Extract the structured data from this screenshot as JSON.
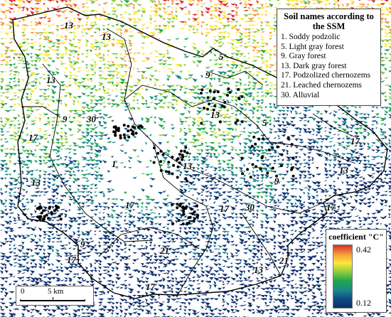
{
  "legend": {
    "title": "Soil names according to the SSM",
    "items": [
      "1. Soddy podzolic",
      "5. Light gray forest",
      "9. Gray forest",
      "13. Dark gray forest",
      "17. Podzolized chernozems",
      "21. Leached chernozems",
      "30. Alluvial"
    ]
  },
  "color_ramp": {
    "title": "coefficient \"C\"",
    "max": "0.42",
    "min": "0.12",
    "colors": [
      "#d62f27",
      "#f59a3b",
      "#fee83a",
      "#8dcb41",
      "#1fa64a",
      "#1c8a8a",
      "#0f4c84",
      "#0d2e6a"
    ]
  },
  "scale": {
    "zero": "0",
    "distance": "5 km"
  },
  "zone_labels": [
    "13",
    "13",
    "13",
    "5",
    "9",
    "30",
    "9",
    "17",
    "1",
    "13",
    "17",
    "13",
    "17",
    "17",
    "30",
    "21",
    "17",
    "9",
    "13",
    "21",
    "17",
    "13",
    "17",
    "13",
    "5",
    "9"
  ],
  "sample_point_color": "#000000"
}
